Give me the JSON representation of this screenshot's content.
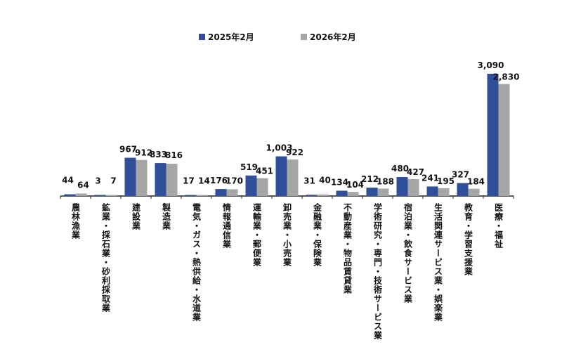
{
  "chart_data": {
    "type": "bar",
    "title": "",
    "xlabel": "",
    "ylabel": "",
    "legend_position": "top",
    "grid": false,
    "ylim": [
      0,
      3500
    ],
    "categories": [
      "農林漁業",
      "鉱業・採石業・砂利採取業",
      "建設業",
      "製造業",
      "電気・ガス・熱供給・水道業",
      "情報通信業",
      "運輸業・郵便業",
      "卸売業・小売業",
      "金融業・保険業",
      "不動産業・物品賃貸業",
      "学術研究・専門・技術サービス業",
      "宿泊業・飲食サービス業",
      "生活関連サービス業・娯楽業",
      "教育・学習支援業",
      "医療・福祉"
    ],
    "series": [
      {
        "name": "2025年2月",
        "color": "#2F4F9A",
        "values": [
          44,
          3,
          967,
          833,
          17,
          176,
          519,
          1003,
          31,
          134,
          212,
          480,
          241,
          327,
          3090
        ],
        "labels": [
          "44",
          "3",
          "967",
          "833",
          "17",
          "176",
          "519",
          "1,003",
          "31",
          "134",
          "212",
          "480",
          "241",
          "327",
          "3,090"
        ]
      },
      {
        "name": "2026年2月",
        "color": "#A6A6A6",
        "values": [
          64,
          7,
          912,
          816,
          14,
          170,
          451,
          922,
          40,
          104,
          188,
          427,
          195,
          184,
          2830
        ],
        "labels": [
          "64",
          "7",
          "912",
          "816",
          "14",
          "170",
          "451",
          "922",
          "40",
          "104",
          "188",
          "427",
          "195",
          "184",
          "2,830"
        ]
      }
    ]
  }
}
